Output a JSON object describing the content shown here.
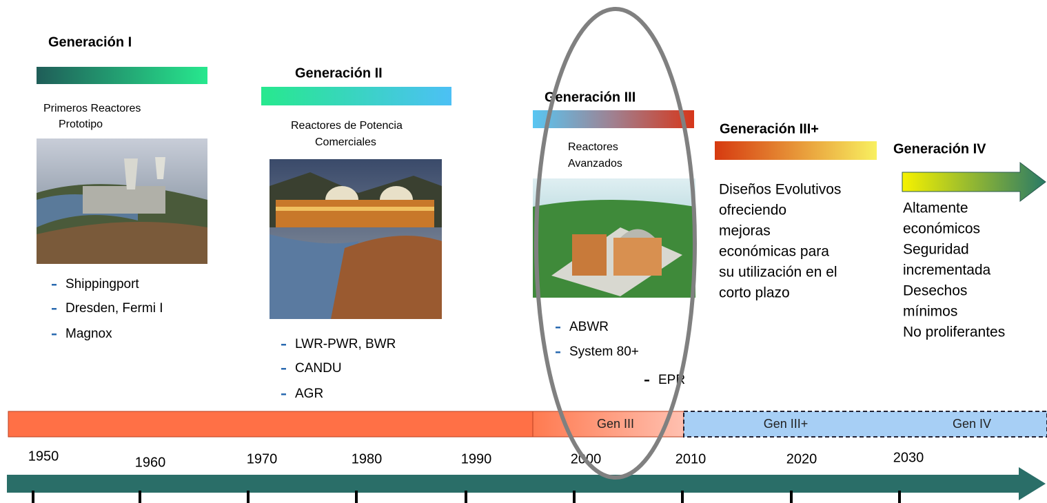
{
  "generations": [
    {
      "title": "Generación I",
      "subtitle": [
        "Primeros Reactores",
        "Prototipo"
      ],
      "items": [
        "Shippingport",
        "Dresden, Fermi I",
        "Magnox"
      ]
    },
    {
      "title": "Generación II",
      "subtitle": [
        "Reactores de Potencia",
        "Comerciales"
      ],
      "items": [
        "LWR-PWR, BWR",
        "CANDU",
        "AGR"
      ]
    },
    {
      "title": "Generación III",
      "subtitle": [
        "Reactores",
        "Avanzados"
      ],
      "items": [
        "ABWR",
        "System 80+",
        "EPR"
      ]
    },
    {
      "title": "Generación III+",
      "description": [
        "Diseños Evolutivos",
        "ofreciendo",
        "mejoras",
        "económicas para",
        "su utilización en el",
        "corto plazo"
      ]
    },
    {
      "title": "Generación IV",
      "description": [
        "Altamente",
        "económicos",
        "Seguridad",
        "incrementada",
        "Desechos",
        "mínimos",
        "No proliferantes"
      ]
    }
  ],
  "timeline": {
    "bands": [
      "Gen III",
      "Gen III+",
      "Gen IV"
    ],
    "years": [
      "1950",
      "1960",
      "1970",
      "1980",
      "1990",
      "2000",
      "2010",
      "2020",
      "2030"
    ]
  }
}
